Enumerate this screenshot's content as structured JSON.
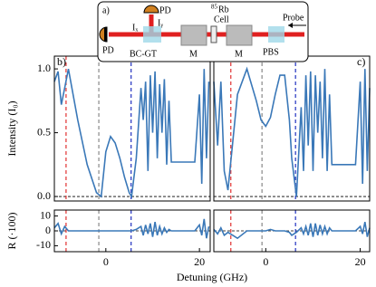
{
  "figure": {
    "xlabel": "Detuning (GHz)",
    "ylabel_top": "Intensity (I₀)",
    "ylabel_bottom": "R (·100)"
  },
  "diagram": {
    "panel": "a)",
    "pd_top": "PD",
    "pd_left": "PD",
    "ix": "Iₓ",
    "iy": "Iᵧ",
    "rb_mass": "85",
    "rb": "Rb",
    "cell": "Cell",
    "bcgt": "BC-GT",
    "m1": "M",
    "m2": "M",
    "pbs": "PBS",
    "probe": "Probe"
  },
  "chart_data": [
    {
      "type": "line",
      "title": "b)",
      "xlim": [
        -11,
        22.3
      ],
      "ylim": [
        -0.035,
        1.1
      ],
      "yticks": [
        {
          "value": 0,
          "label": "0.0"
        },
        0.5,
        {
          "value": 1,
          "label": "1.0"
        }
      ],
      "x": [
        -11,
        -10.2,
        -9.5,
        -8.8,
        -8,
        -6,
        -4,
        -2,
        -1,
        0,
        1,
        2,
        3,
        4,
        5,
        5.5,
        6.5,
        7.5,
        8,
        8.5,
        9,
        9.5,
        10,
        10.5,
        11,
        11.5,
        12,
        12.5,
        13,
        13.5,
        14,
        15,
        17,
        19,
        20,
        20.5,
        21,
        21.5,
        22
      ],
      "series": [
        {
          "color": "#3a78b8",
          "values": [
            0.9,
            0.98,
            0.72,
            0.85,
            1.0,
            0.6,
            0.25,
            0.03,
            0.0,
            0.35,
            0.47,
            0.42,
            0.3,
            0.15,
            0.03,
            0.0,
            0.3,
            0.85,
            0.6,
            0.9,
            0.2,
            0.95,
            0.5,
            0.98,
            0.3,
            0.88,
            0.5,
            0.92,
            0.25,
            0.75,
            0.27,
            0.27,
            0.27,
            0.27,
            0.8,
            0.1,
            1.0,
            0.3,
            0.9
          ]
        }
      ],
      "vlines": [
        {
          "x": -8.5,
          "color": "#e03030"
        },
        {
          "x": -1.5,
          "color": "#888888"
        },
        {
          "x": 5.4,
          "color": "#2030c0"
        }
      ]
    },
    {
      "type": "line",
      "xlim": [
        -11,
        22.3
      ],
      "ylim": [
        -14,
        14
      ],
      "yticks": [
        10,
        0,
        -10
      ],
      "xticks": [
        0,
        20
      ],
      "x": [
        -11,
        -10.2,
        -9.5,
        -8.8,
        -8,
        -6,
        -4,
        -2,
        -1,
        0,
        1,
        2,
        3,
        4,
        5,
        5.5,
        6.5,
        7.5,
        8,
        8.5,
        9,
        9.5,
        10,
        10.5,
        11,
        11.5,
        12,
        12.5,
        13,
        13.5,
        14,
        15,
        17,
        19,
        20,
        20.5,
        21,
        21.5,
        22
      ],
      "series": [
        {
          "color": "#3a78b8",
          "values": [
            2,
            5,
            -2,
            3,
            0,
            0,
            0,
            0,
            0,
            0,
            0,
            0,
            0,
            0,
            0,
            0,
            1,
            3,
            -3,
            4,
            -2,
            5,
            -4,
            6,
            -3,
            3,
            -2,
            2,
            -1,
            1,
            0,
            0,
            0,
            0,
            4,
            -3,
            8,
            -5,
            3
          ]
        }
      ],
      "vlines": [
        {
          "x": -8.5,
          "color": "#e03030"
        },
        {
          "x": -1.5,
          "color": "#888888"
        },
        {
          "x": 5.4,
          "color": "#2030c0"
        }
      ]
    },
    {
      "type": "line",
      "title": "c)",
      "xlim": [
        -11,
        22
      ],
      "ylim": [
        -0.035,
        1.1
      ],
      "x": [
        -11,
        -10.2,
        -9.5,
        -8.8,
        -8,
        -6,
        -4,
        -2,
        -1,
        0,
        1,
        2,
        3,
        4,
        5,
        5.5,
        6.5,
        7.5,
        8,
        8.5,
        9,
        9.5,
        10,
        10.5,
        11,
        11.5,
        12,
        12.5,
        13,
        13.5,
        14,
        15,
        17,
        19,
        20,
        20.5,
        21,
        21.5,
        22
      ],
      "series": [
        {
          "color": "#3a78b8",
          "values": [
            0.9,
            0.4,
            0.9,
            0.2,
            0.05,
            0.8,
            1.0,
            0.75,
            0.6,
            0.55,
            0.62,
            0.8,
            0.95,
            0.95,
            0.6,
            0.3,
            0.0,
            0.7,
            0.2,
            0.95,
            0.4,
            0.98,
            0.2,
            0.95,
            0.5,
            0.9,
            0.3,
            1.0,
            0.2,
            0.8,
            0.25,
            0.25,
            0.25,
            0.25,
            0.9,
            0.1,
            1.0,
            0.2,
            0.85
          ]
        }
      ],
      "vlines": [
        {
          "x": -7.4,
          "color": "#e03030"
        },
        {
          "x": -0.8,
          "color": "#888888"
        },
        {
          "x": 6.3,
          "color": "#2030c0"
        }
      ]
    },
    {
      "type": "line",
      "xlim": [
        -11,
        22
      ],
      "ylim": [
        -14,
        14
      ],
      "xticks": [
        0,
        20
      ],
      "x": [
        -11,
        -10.2,
        -9.5,
        -8.8,
        -8,
        -6,
        -4,
        -2,
        -1,
        0,
        1,
        2,
        3,
        4,
        5,
        5.5,
        6.5,
        7.5,
        8,
        8.5,
        9,
        9.5,
        10,
        10.5,
        11,
        11.5,
        12,
        12.5,
        13,
        13.5,
        14,
        15,
        17,
        19,
        20,
        20.5,
        21,
        21.5,
        22
      ],
      "series": [
        {
          "color": "#3a78b8",
          "values": [
            1,
            -2,
            2,
            -3,
            -1,
            -5,
            0,
            0,
            0,
            0,
            1,
            0,
            0,
            0,
            -1,
            -3,
            -1,
            2,
            -2,
            3,
            -3,
            5,
            -4,
            5,
            -3,
            4,
            -2,
            3,
            -2,
            2,
            0,
            0,
            0,
            0,
            3,
            -2,
            6,
            -4,
            2
          ]
        }
      ],
      "vlines": [
        {
          "x": -7.4,
          "color": "#e03030"
        },
        {
          "x": -0.8,
          "color": "#888888"
        },
        {
          "x": 6.3,
          "color": "#2030c0"
        }
      ]
    }
  ]
}
